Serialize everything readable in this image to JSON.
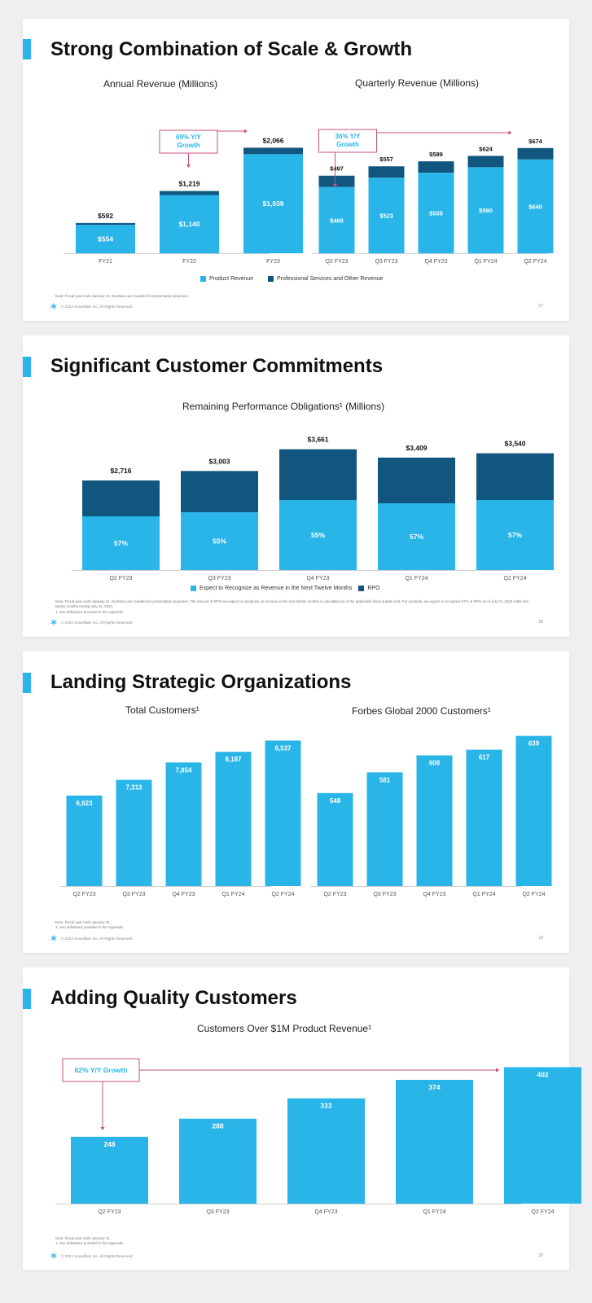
{
  "colors": {
    "product": "#29b5e8",
    "services": "#11567f",
    "growth": "#c94f7c"
  },
  "copyright": "© 2023 Snowflake Inc. All Rights Reserved",
  "slides": [
    {
      "title": "Strong Combination of Scale & Growth",
      "page": "17",
      "note": "Note: Fiscal year ends January 31. Numbers are rounded for presentation purposes.",
      "legend": [
        "Product Revenue",
        "Professional Services and Other Revenue"
      ]
    },
    {
      "title": "Significant Customer Commitments",
      "page": "18",
      "note": "Note: Fiscal year ends January 31. Numbers are rounded for presentation purposes. The amount of RPO we expect to recognize as revenue in the next twelve months is calculated as of the applicable fiscal quarter end. For example, we expect to recognize 57% of RPO as of July 31, 2023 within the twelve months ending July 31, 2024.",
      "note2": "1. See definitions provided in the Appendix.",
      "legend": [
        "Expect to Recognize as Revenue in the Next Twelve Months",
        "RPO"
      ]
    },
    {
      "title": "Landing Strategic Organizations",
      "page": "19",
      "note": "Note: Fiscal year ends January 31.",
      "note2": "1. See definitions provided in the Appendix."
    },
    {
      "title": "Adding Quality Customers",
      "page": "20",
      "note": "Note: Fiscal year ends January 31.",
      "note2": "1. See definitions provided in the Appendix."
    }
  ],
  "chart_data": [
    {
      "type": "bar",
      "stacked": true,
      "title": "Annual Revenue (Millions)",
      "categories": [
        "FY21",
        "FY22",
        "FY23"
      ],
      "series": [
        {
          "name": "Product Revenue",
          "values": [
            554,
            1140,
            1939
          ],
          "labels": [
            "$554",
            "$1,140",
            "$1,939"
          ]
        },
        {
          "name": "Professional Services and Other Revenue",
          "values": [
            38,
            79,
            127
          ]
        }
      ],
      "totals": [
        592,
        1219,
        2066
      ],
      "total_labels": [
        "$592",
        "$1,219",
        "$2,066"
      ],
      "ylim": [
        0,
        2200
      ],
      "annotation": {
        "text": [
          "69% Y/Y",
          "Growth"
        ],
        "from": 1,
        "to": 2
      }
    },
    {
      "type": "bar",
      "stacked": true,
      "title": "Quarterly Revenue (Millions)",
      "categories": [
        "Q2 FY23",
        "Q3 FY23",
        "Q4 FY23",
        "Q1 FY24",
        "Q2 FY24"
      ],
      "series": [
        {
          "name": "Product Revenue",
          "values": [
            466,
            523,
            555,
            590,
            640
          ],
          "labels": [
            "$466",
            "$523",
            "$555",
            "$590",
            "$640"
          ]
        },
        {
          "name": "Professional Services and Other Revenue",
          "values": [
            31,
            34,
            34,
            34,
            34
          ]
        }
      ],
      "totals": [
        497,
        557,
        589,
        624,
        674
      ],
      "total_labels": [
        "$497",
        "$557",
        "$589",
        "$624",
        "$674"
      ],
      "ylim": [
        0,
        720
      ],
      "annotation": {
        "text": [
          "36% Y/Y",
          "Growth"
        ],
        "from": 0,
        "to": 4
      }
    },
    {
      "type": "bar",
      "stacked": true,
      "title": "Remaining Performance Obligations¹ (Millions)",
      "categories": [
        "Q2 FY23",
        "Q3 FY23",
        "Q4 FY23",
        "Q1 FY24",
        "Q2 FY24"
      ],
      "totals": [
        2716,
        3003,
        3661,
        3409,
        3540
      ],
      "total_labels": [
        "$2,716",
        "$3,003",
        "$3,661",
        "$3,409",
        "$3,540"
      ],
      "ntm_percent": [
        57,
        55,
        55,
        57,
        57
      ],
      "ntm_labels": [
        "57%",
        "55%",
        "55%",
        "57%",
        "57%"
      ],
      "ylim": [
        0,
        3900
      ]
    },
    {
      "type": "bar",
      "title": "Total Customers¹",
      "categories": [
        "Q2 FY23",
        "Q3 FY23",
        "Q4 FY23",
        "Q1 FY24",
        "Q2 FY24"
      ],
      "values": [
        6823,
        7313,
        7854,
        8187,
        8537
      ],
      "labels": [
        "6,823",
        "7,313",
        "7,854",
        "8,187",
        "8,537"
      ],
      "ylim": [
        4000,
        8700
      ]
    },
    {
      "type": "bar",
      "title": "Forbes Global 2000 Customers¹",
      "categories": [
        "Q2 FY23",
        "Q3 FY23",
        "Q4 FY23",
        "Q1 FY24",
        "Q2 FY24"
      ],
      "values": [
        548,
        581,
        608,
        617,
        639
      ],
      "labels": [
        "548",
        "581",
        "608",
        "617",
        "639"
      ],
      "ylim": [
        400,
        645
      ]
    },
    {
      "type": "bar",
      "title": "Customers Over $1M Product Revenue¹",
      "categories": [
        "Q2 FY23",
        "Q3 FY23",
        "Q4 FY23",
        "Q1 FY24",
        "Q2 FY24"
      ],
      "values": [
        248,
        288,
        333,
        374,
        402
      ],
      "labels": [
        "248",
        "288",
        "333",
        "374",
        "402"
      ],
      "ylim": [
        100,
        410
      ],
      "annotation": {
        "text": [
          "62% Y/Y Growth"
        ],
        "from": 0,
        "to": 4
      }
    }
  ]
}
